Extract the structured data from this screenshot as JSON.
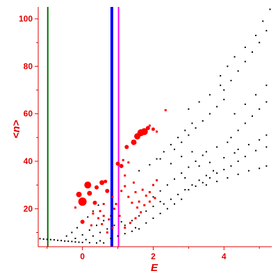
{
  "chart_data": {
    "type": "scatter",
    "title": "",
    "xlabel": "E",
    "ylabel": "<n>",
    "xlim": [
      -1.25,
      5.35
    ],
    "ylim": [
      4,
      105
    ],
    "x_ticks": [
      {
        "value": 0,
        "label": "0"
      },
      {
        "value": 2,
        "label": "2"
      },
      {
        "value": 4,
        "label": "4"
      }
    ],
    "y_ticks": [
      {
        "value": 20,
        "label": "20"
      },
      {
        "value": 40,
        "label": "40"
      },
      {
        "value": 60,
        "label": "60"
      },
      {
        "value": 80,
        "label": "80"
      },
      {
        "value": 100,
        "label": "100"
      }
    ],
    "grid": false,
    "legend": "none",
    "colors": {
      "axis": "#e00000",
      "black_points": "#000000",
      "red_points": "#ff0000"
    },
    "vertical_lines": [
      {
        "x": -0.98,
        "color": "#007000"
      },
      {
        "x": 0.83,
        "color": "#0000ff"
      },
      {
        "x": 1.02,
        "color": "#ff00ff"
      }
    ],
    "black_points": [
      [
        -1.2,
        7.4
      ],
      [
        -1.1,
        7.2
      ],
      [
        -1.0,
        7.1
      ],
      [
        -0.9,
        7.0
      ],
      [
        -0.8,
        6.9
      ],
      [
        -0.7,
        6.7
      ],
      [
        -0.6,
        6.6
      ],
      [
        -0.5,
        6.4
      ],
      [
        -0.4,
        6.3
      ],
      [
        -0.3,
        6.2
      ],
      [
        -0.2,
        6.0
      ],
      [
        -0.1,
        5.9
      ],
      [
        0.0,
        5.8
      ],
      [
        0.2,
        5.7
      ],
      [
        0.4,
        5.6
      ],
      [
        0.6,
        5.6
      ],
      [
        -0.45,
        8.5
      ],
      [
        -0.3,
        10.0
      ],
      [
        -0.15,
        12.0
      ],
      [
        0.0,
        14.0
      ],
      [
        0.15,
        16.5
      ],
      [
        0.3,
        19.0
      ],
      [
        0.45,
        21.5
      ],
      [
        -0.2,
        7.5
      ],
      [
        0.0,
        9.0
      ],
      [
        0.2,
        11.0
      ],
      [
        0.4,
        13.0
      ],
      [
        0.6,
        15.0
      ],
      [
        0.8,
        17.0
      ],
      [
        0.1,
        7.0
      ],
      [
        0.3,
        8.5
      ],
      [
        0.5,
        10.0
      ],
      [
        0.7,
        11.5
      ],
      [
        0.9,
        13.0
      ],
      [
        1.1,
        14.5
      ],
      [
        0.5,
        6.5
      ],
      [
        0.8,
        7.5
      ],
      [
        1.0,
        8.5
      ],
      [
        1.2,
        9.5
      ],
      [
        1.4,
        10.5
      ],
      [
        1.6,
        11.5
      ],
      [
        1.2,
        13.0
      ],
      [
        1.4,
        15.0
      ],
      [
        1.6,
        17.0
      ],
      [
        1.8,
        19.0
      ],
      [
        2.0,
        21.0
      ],
      [
        2.2,
        23.0
      ],
      [
        1.5,
        12.0
      ],
      [
        1.8,
        14.0
      ],
      [
        2.0,
        16.0
      ],
      [
        2.2,
        18.0
      ],
      [
        2.4,
        20.0
      ],
      [
        2.6,
        22.0
      ],
      [
        2.8,
        24.0
      ],
      [
        2.0,
        25.0
      ],
      [
        2.2,
        27.5
      ],
      [
        2.4,
        30.0
      ],
      [
        2.6,
        32.5
      ],
      [
        2.8,
        35.0
      ],
      [
        3.0,
        37.5
      ],
      [
        3.2,
        40.0
      ],
      [
        3.4,
        42.5
      ],
      [
        2.3,
        22.0
      ],
      [
        2.5,
        24.0
      ],
      [
        2.7,
        26.0
      ],
      [
        2.9,
        28.0
      ],
      [
        3.1,
        30.0
      ],
      [
        3.3,
        32.0
      ],
      [
        3.5,
        34.0
      ],
      [
        3.7,
        36.0
      ],
      [
        3.0,
        28.0
      ],
      [
        3.2,
        29.5
      ],
      [
        3.4,
        31.0
      ],
      [
        3.6,
        33.0
      ],
      [
        3.8,
        35.0
      ],
      [
        4.0,
        36.5
      ],
      [
        4.2,
        38.0
      ],
      [
        4.4,
        40.0
      ],
      [
        3.5,
        30.0
      ],
      [
        3.8,
        31.5
      ],
      [
        4.1,
        33.0
      ],
      [
        4.4,
        34.5
      ],
      [
        4.7,
        36.0
      ],
      [
        5.0,
        37.0
      ],
      [
        5.2,
        38.0
      ],
      [
        2.6,
        45.0
      ],
      [
        2.8,
        48.0
      ],
      [
        3.0,
        51.0
      ],
      [
        3.2,
        54.0
      ],
      [
        3.4,
        57.0
      ],
      [
        3.6,
        60.0
      ],
      [
        3.8,
        63.0
      ],
      [
        4.0,
        66.0
      ],
      [
        2.1,
        41.0
      ],
      [
        2.3,
        44.0
      ],
      [
        2.5,
        47.0
      ],
      [
        2.7,
        50.0
      ],
      [
        2.9,
        53.0
      ],
      [
        3.1,
        56.0
      ],
      [
        4.2,
        50.0
      ],
      [
        4.4,
        53.0
      ],
      [
        4.6,
        56.0
      ],
      [
        4.8,
        59.0
      ],
      [
        5.0,
        62.0
      ],
      [
        5.2,
        65.0
      ],
      [
        3.5,
        44.0
      ],
      [
        3.8,
        46.0
      ],
      [
        4.1,
        48.0
      ],
      [
        4.4,
        45.0
      ],
      [
        4.7,
        47.0
      ],
      [
        5.0,
        49.0
      ],
      [
        5.2,
        51.0
      ],
      [
        4.0,
        70.0
      ],
      [
        4.2,
        74.0
      ],
      [
        4.4,
        78.0
      ],
      [
        4.6,
        82.0
      ],
      [
        4.8,
        86.0
      ],
      [
        5.0,
        90.0
      ],
      [
        5.2,
        95.0
      ],
      [
        5.3,
        104.0
      ],
      [
        3.9,
        76.0
      ],
      [
        4.1,
        80.0
      ],
      [
        4.3,
        84.0
      ],
      [
        4.6,
        88.0
      ],
      [
        4.9,
        93.0
      ],
      [
        5.1,
        99.0
      ],
      [
        3.0,
        62.0
      ],
      [
        3.3,
        65.0
      ],
      [
        3.6,
        68.0
      ],
      [
        3.9,
        72.0
      ],
      [
        4.3,
        60.0
      ],
      [
        4.6,
        64.0
      ],
      [
        4.9,
        68.0
      ],
      [
        5.2,
        72.0
      ],
      [
        1.6,
        36.0
      ],
      [
        1.9,
        38.5
      ],
      [
        2.2,
        41.0
      ],
      [
        2.5,
        39.0
      ],
      [
        2.8,
        42.0
      ],
      [
        3.1,
        44.0
      ],
      [
        2.9,
        33.0
      ],
      [
        3.3,
        38.0
      ],
      [
        3.6,
        39.5
      ],
      [
        4.0,
        41.5
      ],
      [
        4.3,
        43.5
      ],
      [
        4.6,
        42.0
      ],
      [
        4.9,
        44.5
      ],
      [
        5.2,
        46.0
      ]
    ],
    "red_points": [
      [
        0.15,
        30.0,
        5.0
      ],
      [
        0.0,
        23.0,
        6.0
      ],
      [
        -0.1,
        26.0,
        4.0
      ],
      [
        0.2,
        26.5,
        3.5
      ],
      [
        0.4,
        29.0,
        3.0
      ],
      [
        0.55,
        31.0,
        3.5
      ],
      [
        0.7,
        27.5,
        3.0
      ],
      [
        0.65,
        31.5,
        2.5
      ],
      [
        0.35,
        22.5,
        3.0
      ],
      [
        0.0,
        14.5,
        3.0
      ],
      [
        0.25,
        13.0,
        2.0
      ],
      [
        -0.2,
        20.5,
        2.0
      ],
      [
        0.5,
        19.0,
        2.0
      ],
      [
        0.6,
        17.0,
        2.0
      ],
      [
        0.75,
        15.5,
        2.0
      ],
      [
        0.85,
        25.0,
        2.0
      ],
      [
        0.9,
        20.0,
        2.0
      ],
      [
        1.0,
        39.0,
        3.0
      ],
      [
        1.1,
        38.0,
        3.0
      ],
      [
        1.2,
        34.0,
        2.0
      ],
      [
        1.15,
        40.5,
        2.0
      ],
      [
        1.3,
        39.5,
        2.0
      ],
      [
        1.25,
        46.0,
        3.0
      ],
      [
        1.45,
        48.0,
        4.0
      ],
      [
        1.55,
        50.5,
        4.5
      ],
      [
        1.65,
        52.0,
        5.0
      ],
      [
        1.75,
        52.5,
        5.0
      ],
      [
        1.85,
        54.0,
        3.0
      ],
      [
        2.0,
        53.5,
        2.5
      ],
      [
        2.1,
        52.5,
        2.0
      ],
      [
        1.9,
        55.0,
        2.0
      ],
      [
        2.35,
        61.5,
        2.0
      ],
      [
        1.1,
        27.5,
        2.0
      ],
      [
        1.2,
        29.5,
        2.0
      ],
      [
        1.3,
        25.0,
        2.0
      ],
      [
        1.45,
        31.0,
        2.0
      ],
      [
        1.5,
        27.0,
        2.0
      ],
      [
        1.6,
        23.0,
        2.0
      ],
      [
        1.7,
        28.0,
        2.0
      ],
      [
        1.8,
        25.5,
        2.0
      ],
      [
        1.9,
        27.0,
        2.0
      ],
      [
        2.0,
        30.0,
        2.0
      ],
      [
        2.1,
        32.0,
        2.0
      ],
      [
        1.75,
        21.5,
        2.0
      ],
      [
        1.65,
        18.5,
        2.0
      ],
      [
        1.5,
        16.0,
        2.0
      ],
      [
        1.35,
        14.0,
        2.0
      ],
      [
        1.2,
        12.0,
        2.0
      ],
      [
        1.05,
        17.0,
        2.0
      ],
      [
        0.95,
        22.0,
        2.0
      ],
      [
        0.85,
        12.0,
        2.0
      ],
      [
        0.7,
        10.0,
        2.0
      ],
      [
        0.55,
        13.5,
        2.0
      ],
      [
        0.45,
        16.0,
        2.0
      ],
      [
        0.3,
        18.0,
        2.0
      ],
      [
        0.6,
        22.0,
        2.0
      ],
      [
        1.55,
        20.5,
        2.0
      ],
      [
        1.9,
        23.0,
        2.0
      ],
      [
        2.05,
        24.5,
        2.0
      ],
      [
        1.4,
        22.5,
        2.0
      ]
    ]
  }
}
